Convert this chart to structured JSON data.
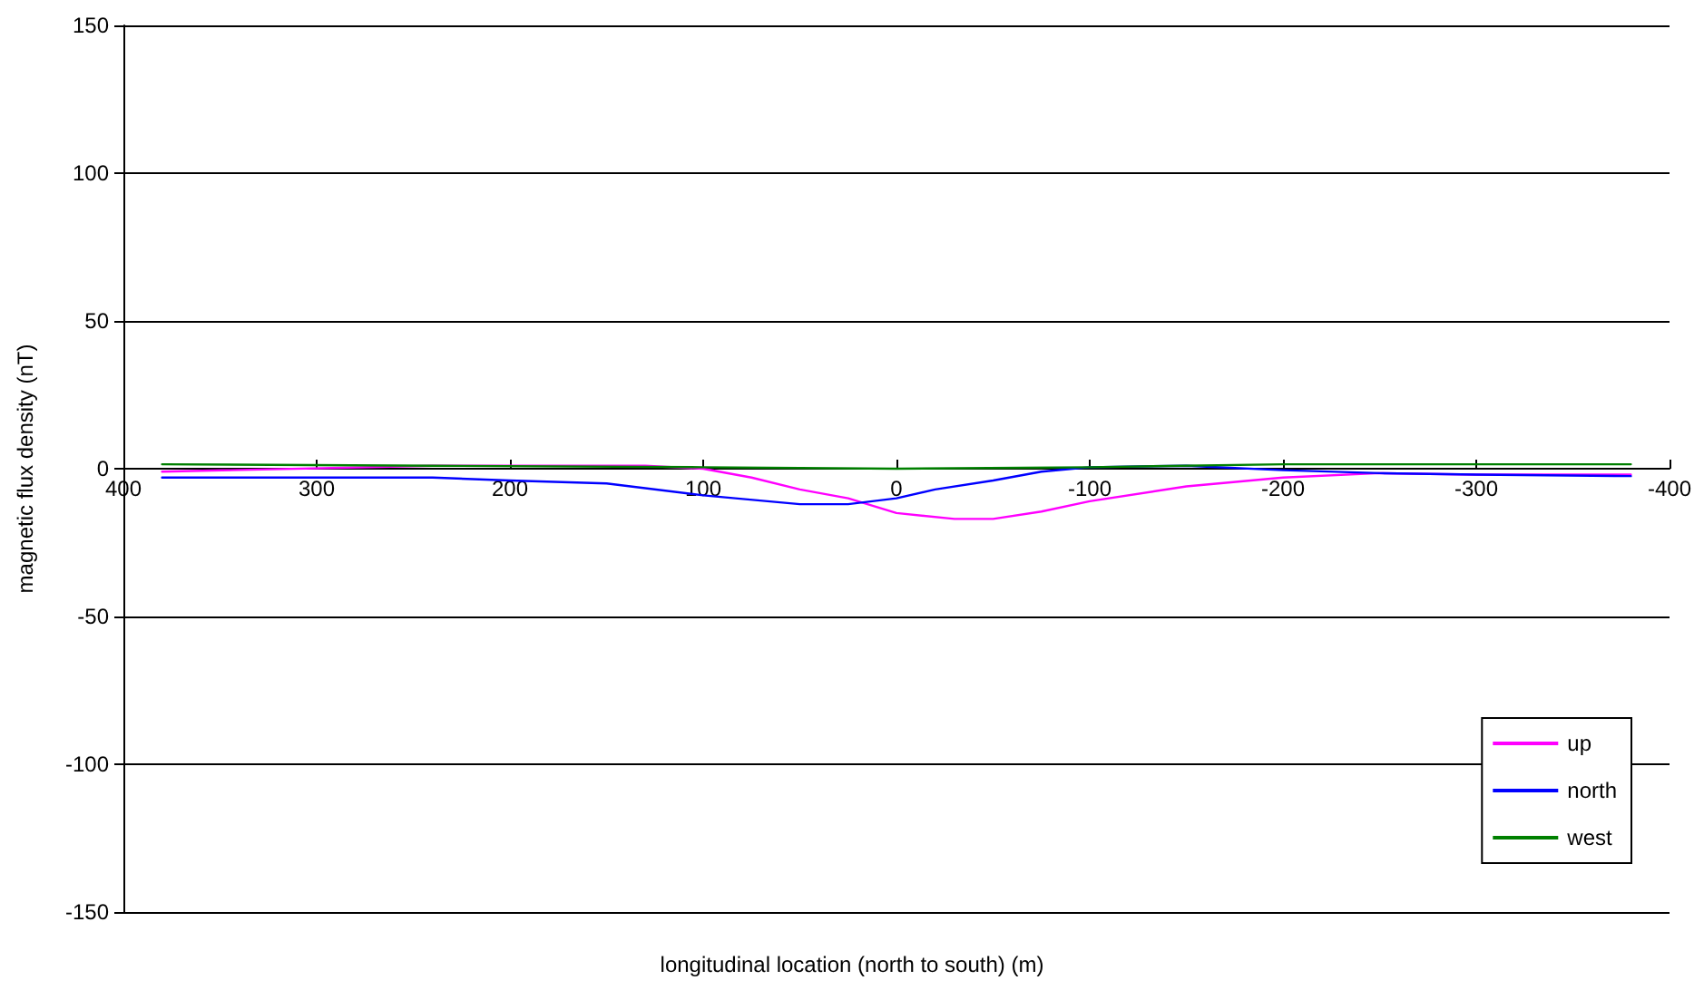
{
  "chart_data": {
    "type": "line",
    "xlabel": "longitudinal location (north to south) (m)",
    "ylabel": "magnetic flux density (nT)",
    "xlim": [
      400,
      -400
    ],
    "xticks": [
      400,
      300,
      200,
      100,
      0,
      -100,
      -200,
      -300,
      -400
    ],
    "ylim": [
      -150,
      150
    ],
    "yticks": [
      -150,
      -100,
      -50,
      0,
      50,
      100,
      150
    ],
    "grid": "y",
    "legend": "bottom right",
    "marker": "none",
    "line_style": "solid",
    "series": [
      {
        "name": "up",
        "color": "#ff00ff",
        "x": [
          380,
          240,
          130,
          100,
          75,
          50,
          25,
          0,
          -30,
          -50,
          -75,
          -100,
          -150,
          -200,
          -250,
          -300,
          -380
        ],
        "values": [
          -1,
          1,
          1,
          0,
          -3,
          -7,
          -10,
          -15,
          -17,
          -17,
          -14.5,
          -11,
          -6,
          -3,
          -1.5,
          -2,
          -2
        ]
      },
      {
        "name": "north",
        "color": "#0000ff",
        "x": [
          380,
          240,
          200,
          150,
          100,
          50,
          25,
          0,
          -20,
          -50,
          -75,
          -100,
          -150,
          -200,
          -250,
          -300,
          -380
        ],
        "values": [
          -3,
          -3,
          -4,
          -5,
          -9,
          -12,
          -12,
          -10,
          -7,
          -4,
          -1,
          0.5,
          1,
          -0.5,
          -1.5,
          -2,
          -2.5
        ]
      },
      {
        "name": "west",
        "color": "#008000",
        "x": [
          380,
          240,
          100,
          0,
          -100,
          -200,
          -380
        ],
        "values": [
          1.5,
          1,
          0.5,
          0,
          0.5,
          1.5,
          1.5
        ]
      }
    ]
  }
}
